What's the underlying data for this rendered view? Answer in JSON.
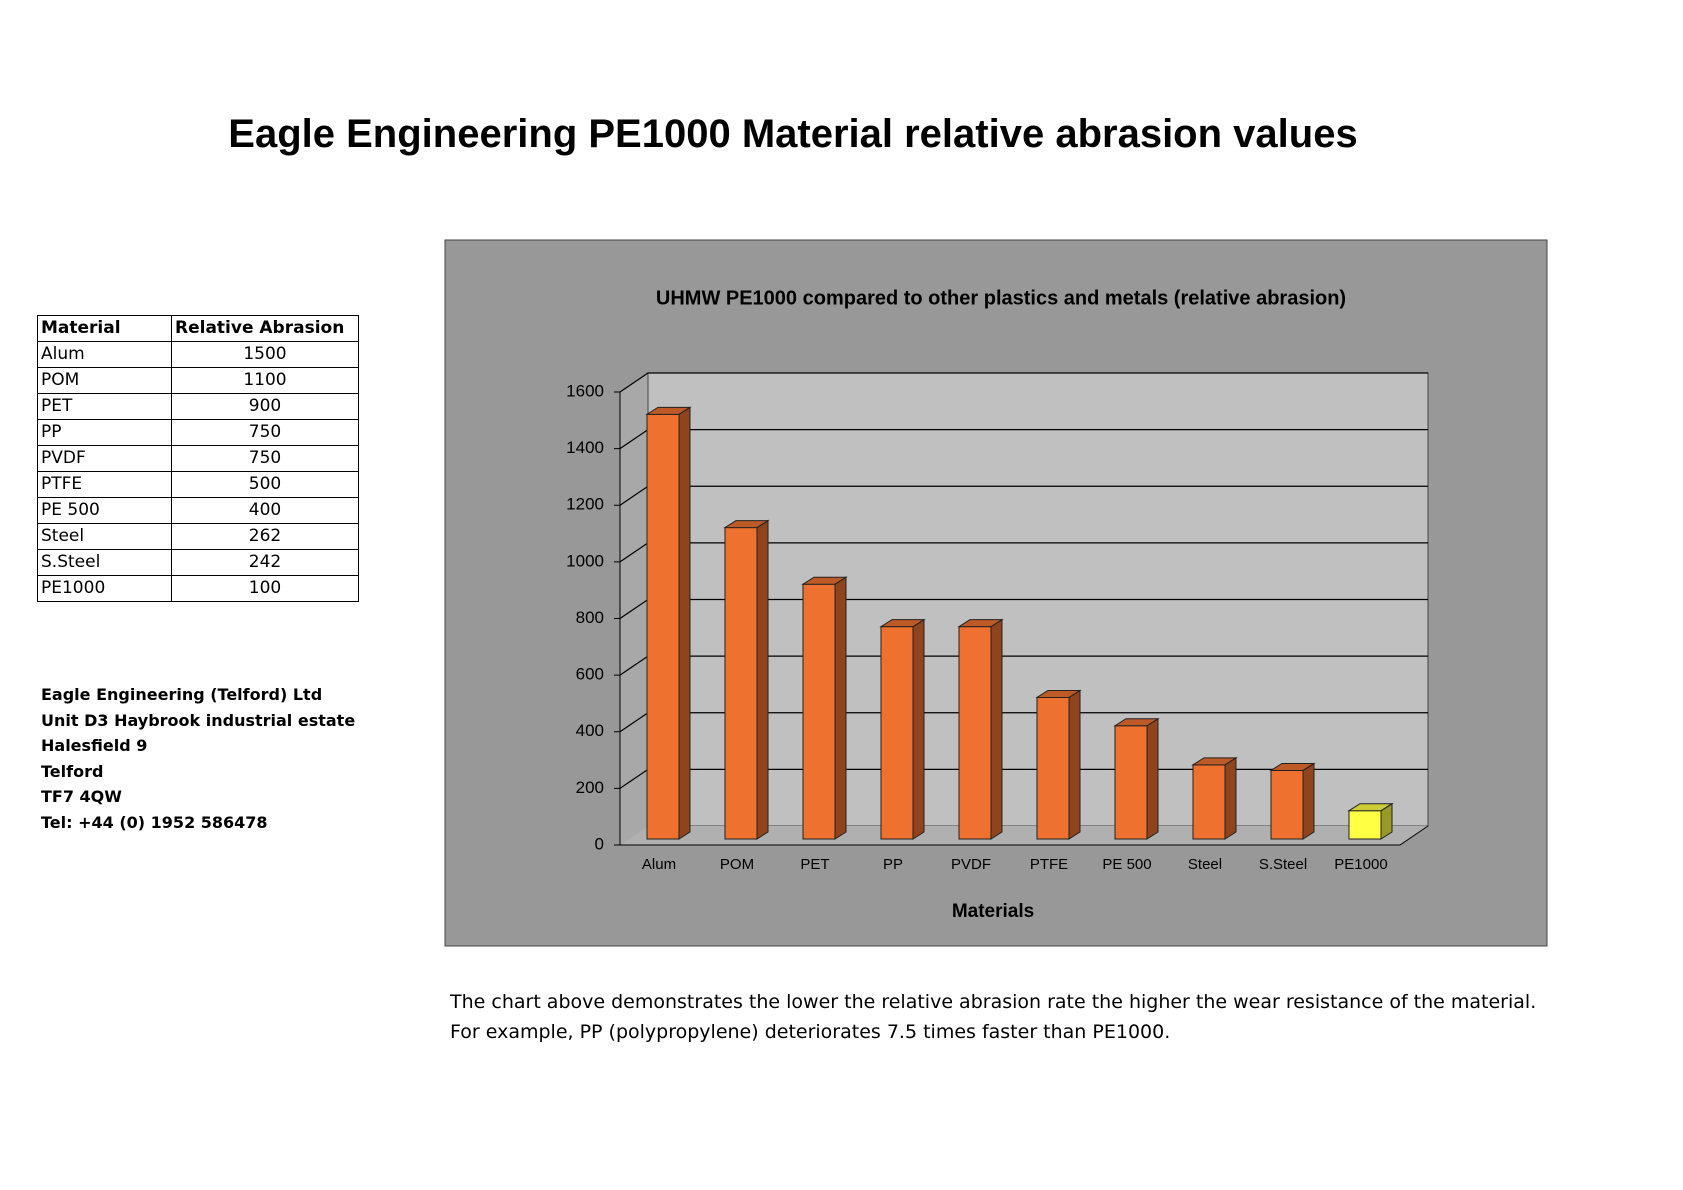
{
  "title": "Eagle Engineering PE1000 Material relative abrasion values",
  "table": {
    "header": [
      "Material",
      "Relative Abrasion"
    ],
    "rows": [
      [
        "Alum",
        "1500"
      ],
      [
        "POM",
        "1100"
      ],
      [
        "PET",
        "900"
      ],
      [
        "PP",
        "750"
      ],
      [
        "PVDF",
        "750"
      ],
      [
        "PTFE",
        "500"
      ],
      [
        "PE 500",
        "400"
      ],
      [
        "Steel",
        "262"
      ],
      [
        "S.Steel",
        "242"
      ],
      [
        "PE1000",
        "100"
      ]
    ]
  },
  "address": [
    "Eagle Engineering (Telford) Ltd",
    "Unit D3 Haybrook industrial estate",
    "Halesfield 9",
    "Telford",
    "TF7 4QW",
    "Tel: +44 (0) 1952 586478"
  ],
  "footnote": [
    "The chart above demonstrates the lower the relative abrasion rate the higher the wear resistance of the material.",
    "For example, PP (polypropylene) deteriorates 7.5 times faster than PE1000."
  ],
  "chart_data": {
    "type": "bar",
    "title": "UHMW PE1000 compared to other plastics and metals (relative abrasion)",
    "x_label": "Materials",
    "categories": [
      "Alum",
      "POM",
      "PET",
      "PP",
      "PVDF",
      "PTFE",
      "PE 500",
      "Steel",
      "S.Steel",
      "PE1000"
    ],
    "values": [
      1500,
      1100,
      900,
      750,
      750,
      500,
      400,
      262,
      242,
      100
    ],
    "colors": [
      "#ee7130",
      "#ee7130",
      "#ee7130",
      "#ee7130",
      "#ee7130",
      "#ee7130",
      "#ee7130",
      "#ee7130",
      "#ee7130",
      "#ffff44"
    ],
    "ylim": [
      0,
      1600
    ],
    "yticks": [
      0,
      200,
      400,
      600,
      800,
      1000,
      1200,
      1400,
      1600
    ],
    "grid": true
  }
}
